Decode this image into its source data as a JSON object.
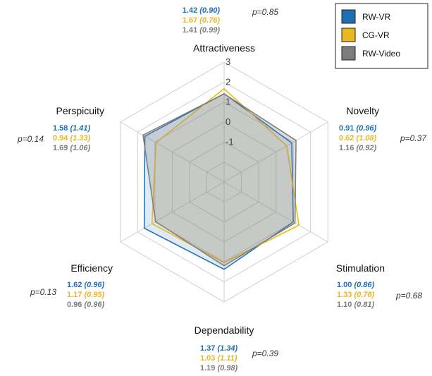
{
  "chart_data": {
    "type": "radar",
    "axes": [
      "Attractiveness",
      "Novelty",
      "Stimulation",
      "Dependability",
      "Efficiency",
      "Perspicuity"
    ],
    "rlim": [
      -3,
      3
    ],
    "ticks": [
      "-1",
      "0",
      "1",
      "2",
      "3"
    ],
    "grid": true,
    "legend": {
      "position": "top-right",
      "entries": [
        "RW-VR",
        "CG-VR",
        "RW-Video"
      ]
    },
    "colors": {
      "RW-VR": "#1f6fb5",
      "CG-VR": "#e9b820",
      "RW-Video": "#7d7d7d"
    },
    "series": [
      {
        "name": "RW-VR",
        "values": [
          1.42,
          0.91,
          1.0,
          1.37,
          1.62,
          1.58
        ],
        "sd": [
          "0.90",
          "0.96",
          "0.86",
          "1.34",
          "0.96",
          "1.41"
        ],
        "display": [
          "1.42",
          "0.91",
          "1.00",
          "1.37",
          "1.62",
          "1.58"
        ]
      },
      {
        "name": "CG-VR",
        "values": [
          1.67,
          0.62,
          1.33,
          1.03,
          1.17,
          0.94
        ],
        "sd": [
          "0.76",
          "1.08",
          "0.76",
          "1.11",
          "0.95",
          "1.33"
        ],
        "display": [
          "1.67",
          "0.62",
          "1.33",
          "1.03",
          "1.17",
          "0.94"
        ]
      },
      {
        "name": "RW-Video",
        "values": [
          1.41,
          1.16,
          1.1,
          1.19,
          0.96,
          1.69
        ],
        "sd": [
          "0.99",
          "0.92",
          "0.81",
          "0.98",
          "0.96",
          "1.06"
        ],
        "display": [
          "1.41",
          "1.16",
          "1.10",
          "1.19",
          "0.96",
          "1.69"
        ]
      }
    ],
    "pvalues": [
      "p=0.85",
      "p=0.37",
      "p=0.68",
      "p=0.39",
      "p=0.13",
      "p=0.14"
    ]
  }
}
